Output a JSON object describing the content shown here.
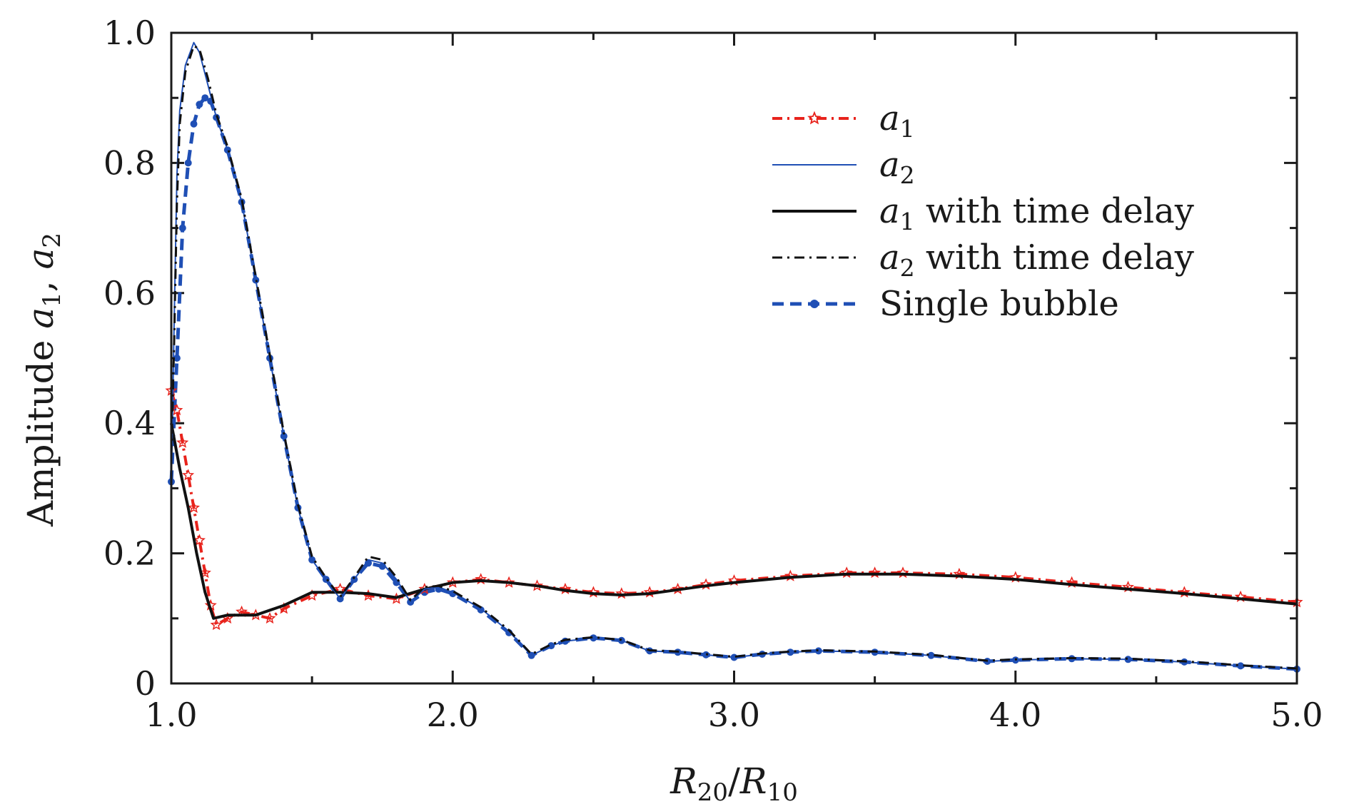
{
  "chart_data": {
    "type": "line",
    "xlabel": "R20/R10",
    "xlabel_parts": {
      "r20_base": "R",
      "r20_sub": "20",
      "slash": "/",
      "r10_base": "R",
      "r10_sub": "10"
    },
    "ylabel": "Amplitude a1, a2",
    "ylabel_parts": {
      "prefix": "Amplitude ",
      "a": "a",
      "sub1": "1",
      "comma": ", ",
      "sub2": "2"
    },
    "xlim": [
      1.0,
      5.0
    ],
    "ylim": [
      0,
      1.0
    ],
    "xticks": [
      {
        "value": 1.0,
        "label": "1.0"
      },
      {
        "value": 2.0,
        "label": "2.0"
      },
      {
        "value": 3.0,
        "label": "3.0"
      },
      {
        "value": 4.0,
        "label": "4.0"
      },
      {
        "value": 5.0,
        "label": "5.0"
      }
    ],
    "yticks": [
      {
        "value": 0,
        "label": "0"
      },
      {
        "value": 0.2,
        "label": "0.2"
      },
      {
        "value": 0.4,
        "label": "0.4"
      },
      {
        "value": 0.6,
        "label": "0.6"
      },
      {
        "value": 0.8,
        "label": "0.8"
      },
      {
        "value": 1.0,
        "label": "1.0"
      }
    ],
    "legend_position": "top-right",
    "series": [
      {
        "id": "a1",
        "name": "a1",
        "legend_base": "a",
        "legend_sub": "1",
        "legend_suffix": "",
        "color": "#e8231c",
        "style": "dashdot",
        "marker": "star",
        "points": [
          [
            1.0,
            0.45
          ],
          [
            1.02,
            0.42
          ],
          [
            1.04,
            0.37
          ],
          [
            1.06,
            0.32
          ],
          [
            1.08,
            0.27
          ],
          [
            1.1,
            0.22
          ],
          [
            1.12,
            0.17
          ],
          [
            1.14,
            0.12
          ],
          [
            1.16,
            0.09
          ],
          [
            1.2,
            0.1
          ],
          [
            1.25,
            0.11
          ],
          [
            1.3,
            0.105
          ],
          [
            1.35,
            0.1
          ],
          [
            1.4,
            0.115
          ],
          [
            1.5,
            0.135
          ],
          [
            1.6,
            0.145
          ],
          [
            1.7,
            0.135
          ],
          [
            1.8,
            0.13
          ],
          [
            1.9,
            0.145
          ],
          [
            2.0,
            0.155
          ],
          [
            2.1,
            0.16
          ],
          [
            2.2,
            0.155
          ],
          [
            2.3,
            0.15
          ],
          [
            2.4,
            0.145
          ],
          [
            2.5,
            0.14
          ],
          [
            2.6,
            0.138
          ],
          [
            2.7,
            0.14
          ],
          [
            2.8,
            0.145
          ],
          [
            2.9,
            0.152
          ],
          [
            3.0,
            0.158
          ],
          [
            3.2,
            0.165
          ],
          [
            3.4,
            0.17
          ],
          [
            3.5,
            0.17
          ],
          [
            3.6,
            0.17
          ],
          [
            3.8,
            0.168
          ],
          [
            4.0,
            0.163
          ],
          [
            4.2,
            0.155
          ],
          [
            4.4,
            0.148
          ],
          [
            4.6,
            0.14
          ],
          [
            4.8,
            0.133
          ],
          [
            5.0,
            0.125
          ]
        ]
      },
      {
        "id": "a2",
        "name": "a2",
        "legend_base": "a",
        "legend_sub": "2",
        "legend_suffix": "",
        "color": "#1f4fb5",
        "style": "solid",
        "marker": "none",
        "points": [
          [
            1.0,
            0.3
          ],
          [
            1.01,
            0.55
          ],
          [
            1.02,
            0.78
          ],
          [
            1.03,
            0.88
          ],
          [
            1.05,
            0.95
          ],
          [
            1.08,
            0.985
          ],
          [
            1.1,
            0.97
          ],
          [
            1.13,
            0.92
          ],
          [
            1.16,
            0.87
          ],
          [
            1.2,
            0.82
          ],
          [
            1.25,
            0.74
          ],
          [
            1.3,
            0.62
          ],
          [
            1.35,
            0.5
          ],
          [
            1.4,
            0.38
          ],
          [
            1.45,
            0.27
          ],
          [
            1.5,
            0.19
          ],
          [
            1.55,
            0.16
          ],
          [
            1.6,
            0.13
          ],
          [
            1.65,
            0.16
          ],
          [
            1.7,
            0.19
          ],
          [
            1.75,
            0.185
          ],
          [
            1.8,
            0.16
          ],
          [
            1.85,
            0.125
          ],
          [
            1.9,
            0.145
          ],
          [
            1.95,
            0.148
          ],
          [
            2.0,
            0.14
          ],
          [
            2.1,
            0.115
          ],
          [
            2.2,
            0.08
          ],
          [
            2.28,
            0.043
          ],
          [
            2.35,
            0.058
          ],
          [
            2.4,
            0.065
          ],
          [
            2.5,
            0.07
          ],
          [
            2.6,
            0.066
          ],
          [
            2.7,
            0.05
          ],
          [
            2.8,
            0.048
          ],
          [
            2.9,
            0.044
          ],
          [
            3.0,
            0.04
          ],
          [
            3.1,
            0.045
          ],
          [
            3.2,
            0.048
          ],
          [
            3.3,
            0.05
          ],
          [
            3.5,
            0.048
          ],
          [
            3.7,
            0.043
          ],
          [
            3.9,
            0.034
          ],
          [
            4.0,
            0.036
          ],
          [
            4.2,
            0.038
          ],
          [
            4.4,
            0.037
          ],
          [
            4.6,
            0.033
          ],
          [
            4.8,
            0.027
          ],
          [
            5.0,
            0.022
          ]
        ]
      },
      {
        "id": "a1-delay",
        "name": "a1 with time delay",
        "legend_base": "a",
        "legend_sub": "1",
        "legend_suffix": " with time delay",
        "color": "#111111",
        "style": "solid",
        "marker": "none",
        "points": [
          [
            1.0,
            0.4
          ],
          [
            1.03,
            0.33
          ],
          [
            1.06,
            0.27
          ],
          [
            1.09,
            0.2
          ],
          [
            1.12,
            0.14
          ],
          [
            1.15,
            0.1
          ],
          [
            1.2,
            0.105
          ],
          [
            1.3,
            0.105
          ],
          [
            1.4,
            0.12
          ],
          [
            1.5,
            0.14
          ],
          [
            1.6,
            0.14
          ],
          [
            1.7,
            0.138
          ],
          [
            1.8,
            0.132
          ],
          [
            1.9,
            0.145
          ],
          [
            2.0,
            0.155
          ],
          [
            2.1,
            0.158
          ],
          [
            2.2,
            0.155
          ],
          [
            2.3,
            0.15
          ],
          [
            2.4,
            0.143
          ],
          [
            2.5,
            0.138
          ],
          [
            2.6,
            0.136
          ],
          [
            2.7,
            0.138
          ],
          [
            2.8,
            0.144
          ],
          [
            2.9,
            0.15
          ],
          [
            3.0,
            0.155
          ],
          [
            3.2,
            0.163
          ],
          [
            3.4,
            0.168
          ],
          [
            3.6,
            0.168
          ],
          [
            3.8,
            0.165
          ],
          [
            4.0,
            0.16
          ],
          [
            4.2,
            0.152
          ],
          [
            4.4,
            0.145
          ],
          [
            4.6,
            0.138
          ],
          [
            4.8,
            0.13
          ],
          [
            5.0,
            0.122
          ]
        ]
      },
      {
        "id": "a2-delay",
        "name": "a2 with time delay",
        "legend_base": "a",
        "legend_sub": "2",
        "legend_suffix": " with time delay",
        "color": "#111111",
        "style": "dashdot",
        "marker": "none",
        "points": [
          [
            1.0,
            0.35
          ],
          [
            1.01,
            0.52
          ],
          [
            1.02,
            0.74
          ],
          [
            1.03,
            0.86
          ],
          [
            1.05,
            0.94
          ],
          [
            1.08,
            0.98
          ],
          [
            1.1,
            0.975
          ],
          [
            1.13,
            0.93
          ],
          [
            1.16,
            0.875
          ],
          [
            1.2,
            0.825
          ],
          [
            1.25,
            0.745
          ],
          [
            1.3,
            0.625
          ],
          [
            1.35,
            0.505
          ],
          [
            1.4,
            0.385
          ],
          [
            1.45,
            0.275
          ],
          [
            1.5,
            0.195
          ],
          [
            1.55,
            0.162
          ],
          [
            1.6,
            0.133
          ],
          [
            1.65,
            0.163
          ],
          [
            1.7,
            0.195
          ],
          [
            1.75,
            0.19
          ],
          [
            1.8,
            0.163
          ],
          [
            1.85,
            0.128
          ],
          [
            1.9,
            0.148
          ],
          [
            1.95,
            0.15
          ],
          [
            2.0,
            0.142
          ],
          [
            2.1,
            0.117
          ],
          [
            2.2,
            0.082
          ],
          [
            2.28,
            0.045
          ],
          [
            2.35,
            0.06
          ],
          [
            2.4,
            0.067
          ],
          [
            2.5,
            0.071
          ],
          [
            2.6,
            0.067
          ],
          [
            2.7,
            0.051
          ],
          [
            2.8,
            0.049
          ],
          [
            2.9,
            0.045
          ],
          [
            3.0,
            0.041
          ],
          [
            3.1,
            0.046
          ],
          [
            3.2,
            0.049
          ],
          [
            3.3,
            0.051
          ],
          [
            3.5,
            0.049
          ],
          [
            3.7,
            0.044
          ],
          [
            3.9,
            0.035
          ],
          [
            4.0,
            0.037
          ],
          [
            4.2,
            0.039
          ],
          [
            4.4,
            0.038
          ],
          [
            4.6,
            0.034
          ],
          [
            4.8,
            0.028
          ],
          [
            5.0,
            0.023
          ]
        ]
      },
      {
        "id": "single",
        "name": "Single bubble",
        "legend_base": "",
        "legend_sub": "",
        "legend_suffix": "Single bubble",
        "color": "#1f4fb5",
        "style": "dashed",
        "marker": "dot",
        "points": [
          [
            1.0,
            0.31
          ],
          [
            1.02,
            0.5
          ],
          [
            1.04,
            0.7
          ],
          [
            1.06,
            0.8
          ],
          [
            1.08,
            0.86
          ],
          [
            1.1,
            0.89
          ],
          [
            1.12,
            0.9
          ],
          [
            1.14,
            0.895
          ],
          [
            1.16,
            0.87
          ],
          [
            1.2,
            0.82
          ],
          [
            1.25,
            0.74
          ],
          [
            1.3,
            0.62
          ],
          [
            1.35,
            0.5
          ],
          [
            1.4,
            0.38
          ],
          [
            1.45,
            0.27
          ],
          [
            1.5,
            0.19
          ],
          [
            1.55,
            0.16
          ],
          [
            1.6,
            0.13
          ],
          [
            1.65,
            0.16
          ],
          [
            1.7,
            0.185
          ],
          [
            1.75,
            0.18
          ],
          [
            1.8,
            0.155
          ],
          [
            1.85,
            0.125
          ],
          [
            1.9,
            0.14
          ],
          [
            1.95,
            0.145
          ],
          [
            2.0,
            0.138
          ],
          [
            2.1,
            0.113
          ],
          [
            2.2,
            0.078
          ],
          [
            2.28,
            0.043
          ],
          [
            2.35,
            0.058
          ],
          [
            2.4,
            0.065
          ],
          [
            2.5,
            0.07
          ],
          [
            2.6,
            0.066
          ],
          [
            2.7,
            0.05
          ],
          [
            2.8,
            0.048
          ],
          [
            2.9,
            0.044
          ],
          [
            3.0,
            0.04
          ],
          [
            3.1,
            0.045
          ],
          [
            3.2,
            0.048
          ],
          [
            3.3,
            0.05
          ],
          [
            3.5,
            0.048
          ],
          [
            3.7,
            0.043
          ],
          [
            3.9,
            0.034
          ],
          [
            4.0,
            0.036
          ],
          [
            4.2,
            0.038
          ],
          [
            4.4,
            0.037
          ],
          [
            4.6,
            0.033
          ],
          [
            4.8,
            0.027
          ],
          [
            5.0,
            0.022
          ]
        ]
      }
    ]
  }
}
